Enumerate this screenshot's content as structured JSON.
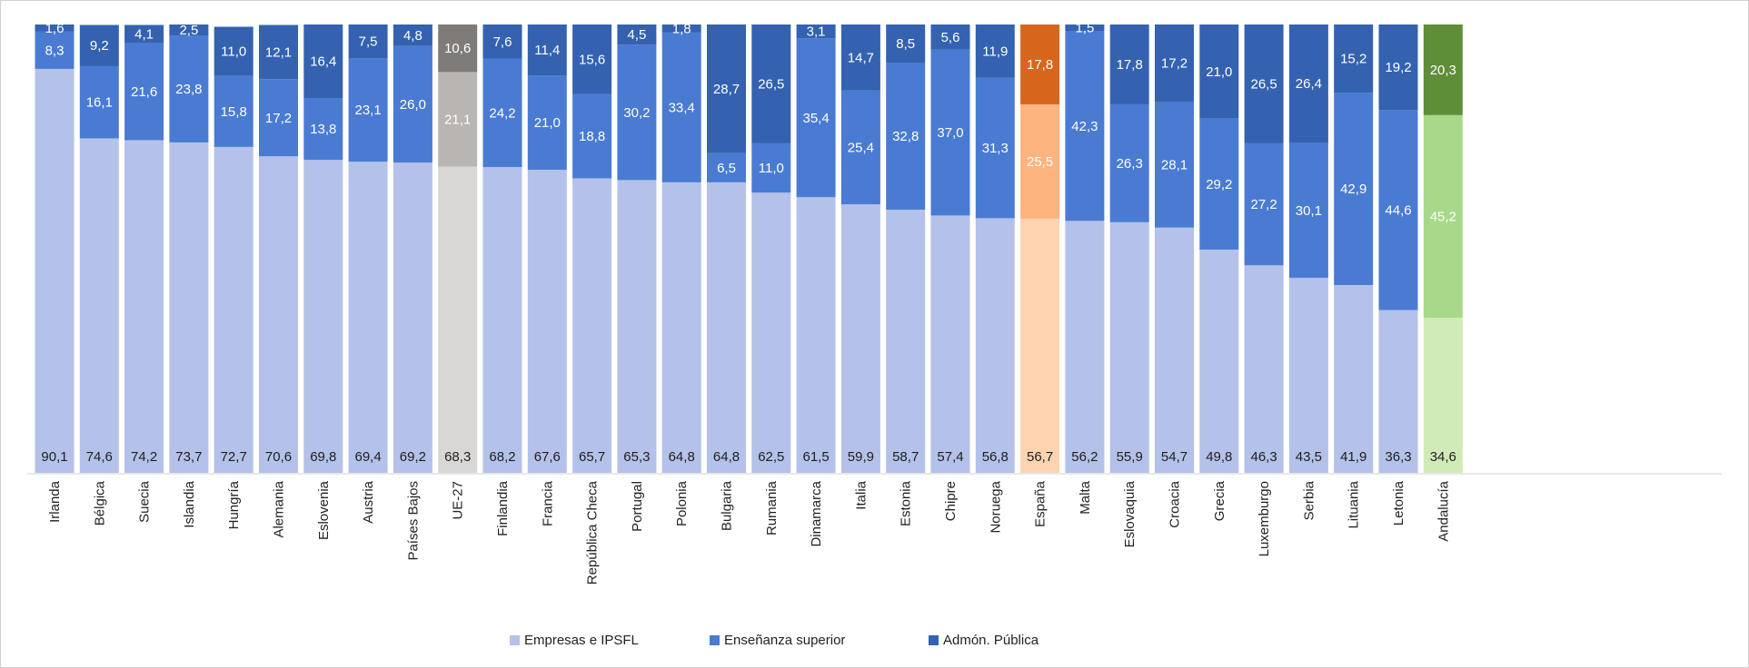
{
  "chart_data": {
    "type": "bar",
    "stacked": true,
    "ylim": [
      0,
      100
    ],
    "grid": false,
    "legend_position": "bottom",
    "categories": [
      "Irlanda",
      "Bélgica",
      "Suecia",
      "Islandia",
      "Hungría",
      "Alemania",
      "Eslovenia",
      "Austria",
      "Países Bajos",
      "UE-27",
      "Finlandia",
      "Francia",
      "República Checa",
      "Portugal",
      "Polonia",
      "Bulgaria",
      "Rumania",
      "Dinamarca",
      "Italia",
      "Estonia",
      "Chipre",
      "Noruega",
      "España",
      "Malta",
      "Eslovaquia",
      "Croacia",
      "Grecia",
      "Luxemburgo",
      "Serbia",
      "Lituania",
      "Letonia",
      "Andalucía"
    ],
    "series": [
      {
        "name": "Empresas e IPSFL",
        "values": [
          90.1,
          74.6,
          74.2,
          73.7,
          72.7,
          70.6,
          69.8,
          69.4,
          69.2,
          68.3,
          68.2,
          67.6,
          65.7,
          65.3,
          64.8,
          64.8,
          62.5,
          61.5,
          59.9,
          58.7,
          57.4,
          56.8,
          56.7,
          56.2,
          55.9,
          54.7,
          49.8,
          46.3,
          43.5,
          41.9,
          36.3,
          34.6
        ],
        "labels": [
          "90,1",
          "74,6",
          "74,2",
          "73,7",
          "72,7",
          "70,6",
          "69,8",
          "69,4",
          "69,2",
          "68,3",
          "68,2",
          "67,6",
          "65,7",
          "65,3",
          "64,8",
          "64,8",
          "62,5",
          "61,5",
          "59,9",
          "58,7",
          "57,4",
          "56,8",
          "56,7",
          "56,2",
          "55,9",
          "54,7",
          "49,8",
          "46,3",
          "43,5",
          "41,9",
          "36,3",
          "34,6"
        ]
      },
      {
        "name": "Enseñanza superior",
        "values": [
          8.3,
          16.1,
          21.6,
          23.8,
          15.8,
          17.2,
          13.8,
          23.1,
          26.0,
          21.1,
          24.2,
          21.0,
          18.8,
          30.2,
          33.4,
          6.5,
          11.0,
          35.4,
          25.4,
          32.8,
          37.0,
          31.3,
          25.5,
          42.3,
          26.3,
          28.1,
          29.2,
          27.2,
          30.1,
          42.9,
          44.6,
          45.2
        ],
        "labels": [
          "8,3",
          "16,1",
          "21,6",
          "23,8",
          "15,8",
          "17,2",
          "13,8",
          "23,1",
          "26,0",
          "21,1",
          "24,2",
          "21,0",
          "18,8",
          "30,2",
          "33,4",
          "6,5",
          "11,0",
          "35,4",
          "25,4",
          "32,8",
          "37,0",
          "31,3",
          "25,5",
          "42,3",
          "26,3",
          "28,1",
          "29,2",
          "27,2",
          "30,1",
          "42,9",
          "44,6",
          "45,2"
        ]
      },
      {
        "name": "Admón. Pública",
        "values": [
          1.6,
          9.2,
          4.1,
          2.5,
          11.0,
          12.1,
          16.4,
          7.5,
          4.8,
          10.6,
          7.6,
          11.4,
          15.6,
          4.5,
          1.8,
          28.7,
          26.5,
          3.1,
          14.7,
          8.5,
          5.6,
          11.9,
          17.8,
          1.5,
          17.8,
          17.2,
          21.0,
          26.5,
          26.4,
          15.2,
          19.2,
          20.3
        ],
        "labels": [
          "1,6",
          "9,2",
          "4,1",
          "2,5",
          "11,0",
          "12,1",
          "16,4",
          "7,5",
          "4,8",
          "10,6",
          "7,6",
          "11,4",
          "15,6",
          "4,5",
          "1,8",
          "28,7",
          "26,5",
          "3,1",
          "14,7",
          "8,5",
          "5,6",
          "11,9",
          "17,8",
          "1,5",
          "17,8",
          "17,2",
          "21,0",
          "26,5",
          "26,4",
          "15,2",
          "19,2",
          "20,3"
        ]
      }
    ],
    "colors": {
      "default": [
        "#b4c1e8",
        "#4a7bd3",
        "#3462b0"
      ],
      "UE-27": [
        "#d9d7d6",
        "#b9b5b2",
        "#7f7b78"
      ],
      "España": [
        "#fdd3b0",
        "#fdb47e",
        "#d7651c"
      ],
      "Andalucía": [
        "#d0ebb8",
        "#a8d88a",
        "#5e8e38"
      ]
    },
    "label_colors": {
      "default": [
        "#1f1f1f",
        "#ffffff",
        "#ffffff"
      ],
      "UE-27": [
        "#1f1f1f",
        "#ffffff",
        "#ffffff"
      ],
      "España": [
        "#1f1f1f",
        "#ffffff",
        "#ffffff"
      ],
      "Andalucía": [
        "#1f1f1f",
        "#ffffff",
        "#ffffff"
      ]
    }
  }
}
